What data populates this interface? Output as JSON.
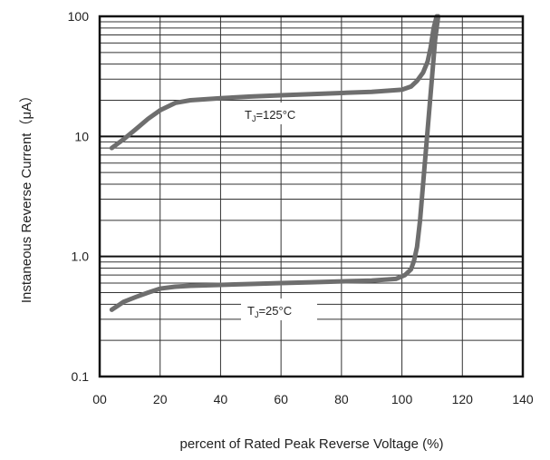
{
  "chart_data": {
    "type": "line",
    "xlabel": "percent of Rated  Peak Reverse Voltage (%)",
    "ylabel": "Instaneous Reverse Current（μA）",
    "x_ticks": [
      "00",
      "20",
      "40",
      "60",
      "80",
      "100",
      "120",
      "140"
    ],
    "y_ticks": [
      "0.1",
      "1.0",
      "10",
      "100"
    ],
    "xlim": [
      0,
      140
    ],
    "ylim": [
      0.1,
      100
    ],
    "y_scale": "log",
    "grid": true,
    "series": [
      {
        "name": "TJ=125°C",
        "label_main": "T",
        "label_sub": "J",
        "label_rest": "=125°C",
        "x": [
          4,
          8,
          12,
          16,
          20,
          25,
          30,
          40,
          50,
          60,
          70,
          80,
          90,
          100,
          103,
          105,
          107,
          108.5,
          109.5,
          110.5,
          111.5
        ],
        "y": [
          8,
          9.5,
          11.5,
          14,
          16.5,
          19,
          20,
          20.8,
          21.5,
          22,
          22.5,
          23,
          23.5,
          24.5,
          26,
          29,
          34,
          42,
          55,
          80,
          100
        ]
      },
      {
        "name": "TJ=25°C",
        "label_main": "T",
        "label_sub": "J",
        "label_rest": "=25°C",
        "x": [
          4,
          8,
          12,
          16,
          20,
          25,
          30,
          40,
          50,
          60,
          70,
          80,
          90,
          98,
          101,
          103,
          104,
          105,
          106,
          107,
          108,
          109,
          110,
          111,
          112
        ],
        "y": [
          0.36,
          0.42,
          0.46,
          0.5,
          0.54,
          0.56,
          0.57,
          0.58,
          0.59,
          0.6,
          0.61,
          0.62,
          0.63,
          0.65,
          0.7,
          0.78,
          0.92,
          1.2,
          2,
          4,
          8,
          16,
          32,
          64,
          100
        ]
      }
    ],
    "line_color": "#6e6e6e",
    "grid_color": "#333333"
  }
}
